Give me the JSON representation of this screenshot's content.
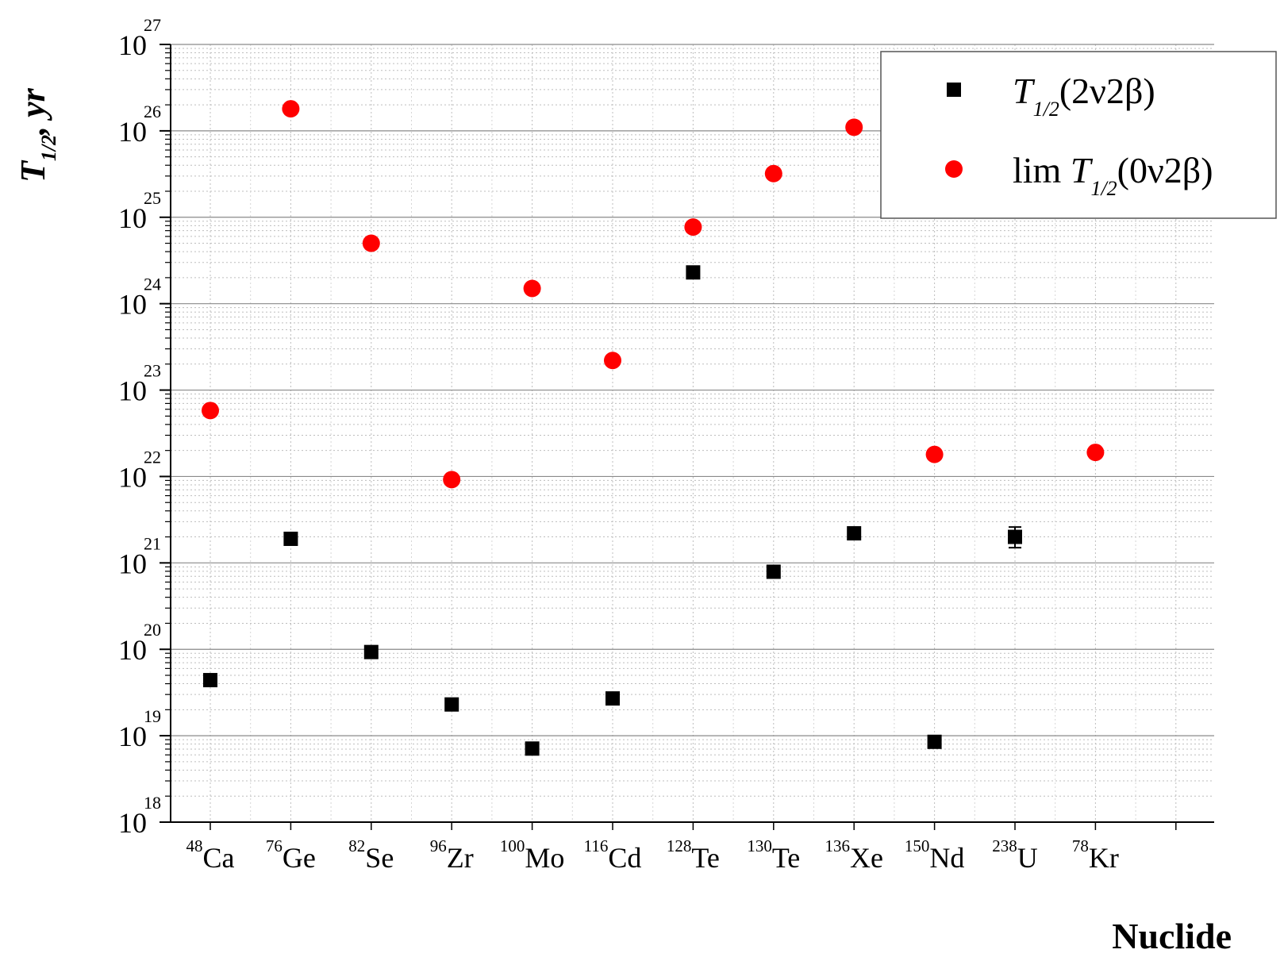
{
  "chart_data": {
    "type": "scatter",
    "xlabel": "Nuclide",
    "ylabel": {
      "main": "T",
      "sub": "1/2",
      "suffix": ", yr"
    },
    "yscale": "log",
    "ylim_exp": [
      18,
      27
    ],
    "grid": true,
    "legend_position": "top-right",
    "categories": [
      {
        "mass": "48",
        "element": "Ca"
      },
      {
        "mass": "76",
        "element": "Ge"
      },
      {
        "mass": "82",
        "element": "Se"
      },
      {
        "mass": "96",
        "element": "Zr"
      },
      {
        "mass": "100",
        "element": "Mo"
      },
      {
        "mass": "116",
        "element": "Cd"
      },
      {
        "mass": "128",
        "element": "Te"
      },
      {
        "mass": "130",
        "element": "Te"
      },
      {
        "mass": "136",
        "element": "Xe"
      },
      {
        "mass": "150",
        "element": "Nd"
      },
      {
        "mass": "238",
        "element": "U"
      },
      {
        "mass": "78",
        "element": "Kr"
      }
    ],
    "series": [
      {
        "name": "T1/2(2ν2β)",
        "legend": {
          "main": "T",
          "sub": "1/2",
          "suffix": "(2ν2β)",
          "prefix": ""
        },
        "marker": "square",
        "color": "#000000",
        "values": [
          4.4e+19,
          1.9e+21,
          9.3e+19,
          2.3e+19,
          7.1e+18,
          2.7e+19,
          2.3e+24,
          7.9e+20,
          2.2e+21,
          8.5e+18,
          2e+21,
          null
        ],
        "err_low": [
          null,
          null,
          null,
          null,
          null,
          null,
          null,
          null,
          null,
          null,
          1.5e+21,
          null
        ],
        "err_high": [
          null,
          null,
          null,
          null,
          null,
          null,
          null,
          null,
          null,
          null,
          2.6e+21,
          null
        ]
      },
      {
        "name": "lim T1/2(0ν2β)",
        "legend": {
          "prefix": "lim ",
          "main": "T",
          "sub": "1/2",
          "suffix": "(0ν2β)"
        },
        "marker": "circle",
        "color": "#ff0000",
        "values": [
          5.8e+22,
          1.8e+26,
          5e+24,
          9.2e+21,
          1.5e+24,
          2.2e+23,
          7.7e+24,
          3.2e+25,
          1.1e+26,
          1.8e+22,
          null,
          1.9e+22
        ]
      }
    ]
  }
}
